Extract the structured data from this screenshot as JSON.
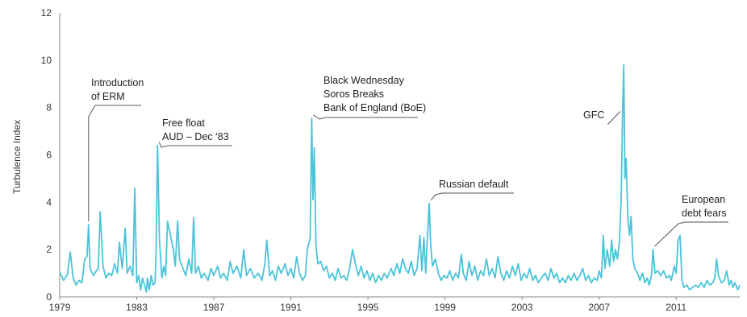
{
  "chart_data": {
    "type": "line",
    "title": "",
    "xlabel": "",
    "ylabel": "Turbulence Index",
    "xlim": [
      1979,
      2014.3
    ],
    "ylim": [
      0,
      12
    ],
    "yticks": [
      0,
      2,
      4,
      6,
      8,
      10,
      12
    ],
    "xticks": [
      1979,
      1983,
      1987,
      1991,
      1995,
      1999,
      2003,
      2007,
      2011
    ],
    "grid": false,
    "line_color": "#4cc3d9",
    "series": [
      {
        "values": [
          [
            1979.0,
            1.05
          ],
          [
            1979.2,
            0.7
          ],
          [
            1979.4,
            0.95
          ],
          [
            1979.55,
            1.9
          ],
          [
            1979.7,
            0.8
          ],
          [
            1979.85,
            0.5
          ],
          [
            1980.0,
            0.7
          ],
          [
            1980.15,
            0.6
          ],
          [
            1980.3,
            1.6
          ],
          [
            1980.42,
            1.7
          ],
          [
            1980.5,
            3.05
          ],
          [
            1980.58,
            1.2
          ],
          [
            1980.75,
            0.9
          ],
          [
            1980.9,
            1.1
          ],
          [
            1981.0,
            1.2
          ],
          [
            1981.1,
            3.6
          ],
          [
            1981.25,
            1.3
          ],
          [
            1981.4,
            0.8
          ],
          [
            1981.55,
            1.0
          ],
          [
            1981.7,
            0.9
          ],
          [
            1981.85,
            1.4
          ],
          [
            1982.0,
            1.0
          ],
          [
            1982.1,
            2.3
          ],
          [
            1982.25,
            1.2
          ],
          [
            1982.4,
            2.9
          ],
          [
            1982.5,
            1.0
          ],
          [
            1982.65,
            1.3
          ],
          [
            1982.8,
            0.9
          ],
          [
            1982.9,
            4.6
          ],
          [
            1983.0,
            0.6
          ],
          [
            1983.1,
            0.9
          ],
          [
            1983.2,
            0.3
          ],
          [
            1983.3,
            0.8
          ],
          [
            1983.4,
            0.5
          ],
          [
            1983.5,
            0.2
          ],
          [
            1983.55,
            0.8
          ],
          [
            1983.65,
            0.3
          ],
          [
            1983.75,
            0.9
          ],
          [
            1983.85,
            0.5
          ],
          [
            1983.95,
            0.6
          ],
          [
            1984.0,
            1.8
          ],
          [
            1984.08,
            6.4
          ],
          [
            1984.18,
            2.4
          ],
          [
            1984.3,
            0.8
          ],
          [
            1984.4,
            1.3
          ],
          [
            1984.5,
            0.9
          ],
          [
            1984.6,
            3.2
          ],
          [
            1984.75,
            2.6
          ],
          [
            1984.9,
            2.0
          ],
          [
            1985.0,
            1.3
          ],
          [
            1985.12,
            3.2
          ],
          [
            1985.22,
            1.6
          ],
          [
            1985.4,
            1.2
          ],
          [
            1985.55,
            0.9
          ],
          [
            1985.7,
            1.6
          ],
          [
            1985.85,
            1.0
          ],
          [
            1985.95,
            3.35
          ],
          [
            1986.05,
            1.0
          ],
          [
            1986.2,
            1.3
          ],
          [
            1986.35,
            0.8
          ],
          [
            1986.5,
            1.0
          ],
          [
            1986.7,
            0.7
          ],
          [
            1986.85,
            1.2
          ],
          [
            1987.0,
            0.9
          ],
          [
            1987.2,
            1.3
          ],
          [
            1987.35,
            0.8
          ],
          [
            1987.5,
            1.0
          ],
          [
            1987.7,
            0.7
          ],
          [
            1987.85,
            1.5
          ],
          [
            1988.0,
            1.0
          ],
          [
            1988.2,
            1.3
          ],
          [
            1988.4,
            0.8
          ],
          [
            1988.55,
            2.0
          ],
          [
            1988.7,
            0.9
          ],
          [
            1988.9,
            1.2
          ],
          [
            1989.1,
            0.8
          ],
          [
            1989.3,
            1.0
          ],
          [
            1989.5,
            0.7
          ],
          [
            1989.65,
            1.4
          ],
          [
            1989.75,
            2.4
          ],
          [
            1989.9,
            0.9
          ],
          [
            1990.05,
            1.1
          ],
          [
            1990.2,
            0.7
          ],
          [
            1990.35,
            1.3
          ],
          [
            1990.5,
            1.0
          ],
          [
            1990.7,
            1.4
          ],
          [
            1990.85,
            0.9
          ],
          [
            1991.0,
            1.2
          ],
          [
            1991.15,
            0.8
          ],
          [
            1991.3,
            1.7
          ],
          [
            1991.45,
            1.0
          ],
          [
            1991.6,
            0.7
          ],
          [
            1991.75,
            0.9
          ],
          [
            1991.85,
            2.0
          ],
          [
            1992.0,
            2.5
          ],
          [
            1992.08,
            7.55
          ],
          [
            1992.15,
            4.1
          ],
          [
            1992.22,
            6.3
          ],
          [
            1992.3,
            2.2
          ],
          [
            1992.4,
            1.4
          ],
          [
            1992.55,
            1.5
          ],
          [
            1992.7,
            1.1
          ],
          [
            1992.85,
            1.3
          ],
          [
            1993.0,
            0.8
          ],
          [
            1993.15,
            1.0
          ],
          [
            1993.3,
            0.7
          ],
          [
            1993.45,
            1.2
          ],
          [
            1993.6,
            0.8
          ],
          [
            1993.75,
            0.9
          ],
          [
            1993.9,
            0.7
          ],
          [
            1994.05,
            1.2
          ],
          [
            1994.2,
            2.0
          ],
          [
            1994.35,
            1.4
          ],
          [
            1994.5,
            0.9
          ],
          [
            1994.65,
            1.3
          ],
          [
            1994.8,
            0.8
          ],
          [
            1994.95,
            1.1
          ],
          [
            1995.1,
            0.7
          ],
          [
            1995.25,
            1.0
          ],
          [
            1995.4,
            0.6
          ],
          [
            1995.55,
            0.9
          ],
          [
            1995.7,
            0.7
          ],
          [
            1995.85,
            1.0
          ],
          [
            1996.0,
            0.8
          ],
          [
            1996.2,
            1.2
          ],
          [
            1996.35,
            0.9
          ],
          [
            1996.5,
            1.4
          ],
          [
            1996.65,
            1.0
          ],
          [
            1996.8,
            1.6
          ],
          [
            1996.95,
            1.2
          ],
          [
            1997.1,
            1.0
          ],
          [
            1997.25,
            1.5
          ],
          [
            1997.4,
            0.9
          ],
          [
            1997.55,
            1.2
          ],
          [
            1997.7,
            2.6
          ],
          [
            1997.8,
            1.1
          ],
          [
            1997.9,
            2.5
          ],
          [
            1998.0,
            1.0
          ],
          [
            1998.1,
            2.7
          ],
          [
            1998.18,
            3.95
          ],
          [
            1998.26,
            2.2
          ],
          [
            1998.35,
            1.3
          ],
          [
            1998.5,
            1.6
          ],
          [
            1998.65,
            1.0
          ],
          [
            1998.8,
            0.7
          ],
          [
            1998.95,
            0.9
          ],
          [
            1999.1,
            0.8
          ],
          [
            1999.25,
            1.1
          ],
          [
            1999.4,
            0.7
          ],
          [
            1999.55,
            1.0
          ],
          [
            1999.7,
            0.8
          ],
          [
            1999.85,
            1.8
          ],
          [
            1999.95,
            1.0
          ],
          [
            2000.1,
            0.7
          ],
          [
            2000.25,
            1.5
          ],
          [
            2000.4,
            0.9
          ],
          [
            2000.55,
            1.3
          ],
          [
            2000.7,
            0.7
          ],
          [
            2000.85,
            1.1
          ],
          [
            2001.0,
            0.9
          ],
          [
            2001.15,
            1.6
          ],
          [
            2001.3,
            0.9
          ],
          [
            2001.45,
            1.2
          ],
          [
            2001.6,
            0.8
          ],
          [
            2001.75,
            1.7
          ],
          [
            2001.9,
            1.0
          ],
          [
            2002.05,
            0.7
          ],
          [
            2002.2,
            1.1
          ],
          [
            2002.35,
            0.8
          ],
          [
            2002.5,
            1.3
          ],
          [
            2002.65,
            0.9
          ],
          [
            2002.8,
            1.4
          ],
          [
            2002.95,
            0.7
          ],
          [
            2003.1,
            1.0
          ],
          [
            2003.25,
            0.8
          ],
          [
            2003.4,
            1.2
          ],
          [
            2003.55,
            0.7
          ],
          [
            2003.7,
            0.9
          ],
          [
            2003.85,
            0.6
          ],
          [
            2004.0,
            0.8
          ],
          [
            2004.2,
            1.0
          ],
          [
            2004.35,
            0.7
          ],
          [
            2004.5,
            1.2
          ],
          [
            2004.65,
            0.8
          ],
          [
            2004.8,
            1.0
          ],
          [
            2004.95,
            0.6
          ],
          [
            2005.1,
            0.8
          ],
          [
            2005.25,
            0.6
          ],
          [
            2005.4,
            0.9
          ],
          [
            2005.55,
            0.7
          ],
          [
            2005.7,
            1.0
          ],
          [
            2005.85,
            0.7
          ],
          [
            2006.0,
            0.9
          ],
          [
            2006.15,
            1.2
          ],
          [
            2006.3,
            0.7
          ],
          [
            2006.45,
            0.9
          ],
          [
            2006.6,
            0.6
          ],
          [
            2006.75,
            0.8
          ],
          [
            2006.9,
            0.7
          ],
          [
            2007.0,
            1.1
          ],
          [
            2007.12,
            0.8
          ],
          [
            2007.22,
            2.6
          ],
          [
            2007.3,
            1.2
          ],
          [
            2007.42,
            2.0
          ],
          [
            2007.55,
            1.3
          ],
          [
            2007.65,
            2.4
          ],
          [
            2007.75,
            1.5
          ],
          [
            2007.85,
            2.0
          ],
          [
            2007.95,
            1.6
          ],
          [
            2008.05,
            2.3
          ],
          [
            2008.15,
            4.2
          ],
          [
            2008.22,
            7.9
          ],
          [
            2008.28,
            9.8
          ],
          [
            2008.34,
            5.0
          ],
          [
            2008.4,
            5.85
          ],
          [
            2008.5,
            3.2
          ],
          [
            2008.58,
            2.6
          ],
          [
            2008.66,
            3.4
          ],
          [
            2008.75,
            1.6
          ],
          [
            2008.85,
            1.2
          ],
          [
            2009.0,
            1.0
          ],
          [
            2009.12,
            0.7
          ],
          [
            2009.25,
            1.0
          ],
          [
            2009.38,
            0.6
          ],
          [
            2009.5,
            0.8
          ],
          [
            2009.6,
            0.5
          ],
          [
            2009.72,
            0.9
          ],
          [
            2009.8,
            2.0
          ],
          [
            2009.9,
            1.0
          ],
          [
            2010.05,
            1.1
          ],
          [
            2010.2,
            0.9
          ],
          [
            2010.35,
            1.1
          ],
          [
            2010.5,
            0.8
          ],
          [
            2010.65,
            0.9
          ],
          [
            2010.75,
            0.7
          ],
          [
            2010.9,
            1.3
          ],
          [
            2011.0,
            1.0
          ],
          [
            2011.1,
            2.4
          ],
          [
            2011.2,
            2.6
          ],
          [
            2011.3,
            0.7
          ],
          [
            2011.4,
            0.4
          ],
          [
            2011.55,
            0.5
          ],
          [
            2011.7,
            0.3
          ],
          [
            2011.85,
            0.4
          ],
          [
            2012.0,
            0.5
          ],
          [
            2012.15,
            0.4
          ],
          [
            2012.3,
            0.6
          ],
          [
            2012.45,
            0.4
          ],
          [
            2012.6,
            0.7
          ],
          [
            2012.75,
            0.5
          ],
          [
            2012.9,
            0.6
          ],
          [
            2013.0,
            0.8
          ],
          [
            2013.1,
            1.6
          ],
          [
            2013.2,
            0.9
          ],
          [
            2013.35,
            0.6
          ],
          [
            2013.5,
            0.7
          ],
          [
            2013.62,
            1.1
          ],
          [
            2013.75,
            0.5
          ],
          [
            2013.85,
            0.7
          ],
          [
            2013.95,
            0.4
          ],
          [
            2014.05,
            0.6
          ],
          [
            2014.2,
            0.3
          ],
          [
            2014.3,
            0.5
          ]
        ]
      }
    ],
    "annotations": [
      {
        "lines": [
          "Introduction",
          "of ERM"
        ],
        "x": 1980.5,
        "y": 3.05
      },
      {
        "lines": [
          "Free float",
          "AUD – Dec ‘83"
        ],
        "x": 1984.08,
        "y": 6.4
      },
      {
        "lines": [
          "Black Wednesday",
          "Soros Breaks",
          "Bank of England (BoE)"
        ],
        "x": 1992.08,
        "y": 7.55
      },
      {
        "lines": [
          "Russian default"
        ],
        "x": 1998.18,
        "y": 3.95
      },
      {
        "lines": [
          "GFC"
        ],
        "x": 2008.22,
        "y": 7.9
      },
      {
        "lines": [
          "European",
          "debt fears"
        ],
        "x": 2009.8,
        "y": 2.0
      }
    ]
  }
}
